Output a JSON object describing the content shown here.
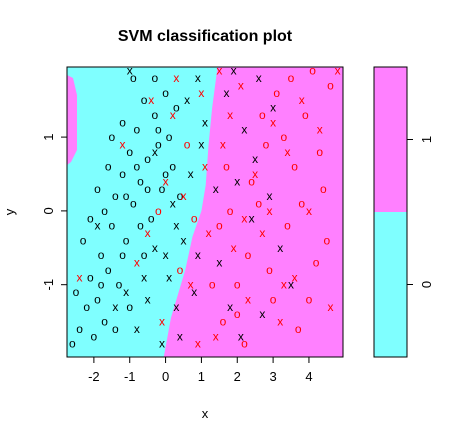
{
  "chart_data": {
    "type": "scatter",
    "title": "SVM classification plot",
    "xlabel": "x",
    "ylabel": "y",
    "xlim": [
      -2.75,
      4.95
    ],
    "ylim": [
      -1.98,
      1.95
    ],
    "x_ticks": [
      -2,
      -1,
      0,
      1,
      2,
      3,
      4
    ],
    "y_ticks": [
      -1,
      0,
      1
    ],
    "grid": false,
    "colors": {
      "class_0_region": "#7FFFFF",
      "class_1_region": "#FF80FF",
      "class_0_points": "#000000",
      "class_1_points": "#FF0000"
    },
    "decision_boundary": [
      [
        1.45,
        1.95
      ],
      [
        1.3,
        1.4
      ],
      [
        1.2,
        0.9
      ],
      [
        1.12,
        0.35
      ],
      [
        1.0,
        0.0
      ],
      [
        0.75,
        -0.35
      ],
      [
        0.55,
        -0.8
      ],
      [
        0.15,
        -1.45
      ],
      [
        -0.05,
        -1.98
      ]
    ],
    "legend": {
      "placement": "right",
      "entries": [
        {
          "label": "1",
          "color": "#FF80FF"
        },
        {
          "label": "0",
          "color": "#7FFFFF"
        }
      ]
    },
    "series": [
      {
        "name": "",
        "marker": "o",
        "color": "#000000",
        "points": [
          [
            -2.4,
            -1.6
          ],
          [
            -2.2,
            -1.3
          ],
          [
            -2.0,
            -1.7
          ],
          [
            -1.9,
            -1.2
          ],
          [
            -2.1,
            -0.9
          ],
          [
            -1.8,
            -0.6
          ],
          [
            -1.7,
            -1.5
          ],
          [
            -2.3,
            -0.4
          ],
          [
            -1.6,
            -0.8
          ],
          [
            -1.5,
            -0.2
          ],
          [
            -1.4,
            0.2
          ],
          [
            -1.3,
            -1.0
          ],
          [
            -1.2,
            0.5
          ],
          [
            -1.1,
            -0.4
          ],
          [
            -1.0,
            0.8
          ],
          [
            -0.9,
            0.1
          ],
          [
            -0.8,
            1.1
          ],
          [
            -0.7,
            0.4
          ],
          [
            -0.6,
            1.5
          ],
          [
            -0.5,
            0.7
          ],
          [
            -0.4,
            -0.1
          ],
          [
            -0.3,
            1.3
          ],
          [
            -0.2,
            0.9
          ],
          [
            -0.1,
            0.3
          ],
          [
            0.0,
            1.6
          ],
          [
            0.1,
            1.0
          ],
          [
            0.2,
            0.6
          ],
          [
            -1.6,
            0.6
          ],
          [
            -1.9,
            0.3
          ],
          [
            -2.1,
            -0.1
          ],
          [
            -0.9,
            1.8
          ],
          [
            -1.2,
            1.2
          ],
          [
            -0.3,
            1.8
          ],
          [
            0.3,
            1.4
          ],
          [
            -0.6,
            -0.6
          ],
          [
            -1.0,
            -1.3
          ],
          [
            -1.4,
            -1.6
          ],
          [
            -0.8,
            0.6
          ],
          [
            0.4,
            0.2
          ],
          [
            -1.7,
            0.0
          ],
          [
            -2.5,
            -1.1
          ],
          [
            -2.6,
            -1.8
          ],
          [
            -1.2,
            -0.6
          ],
          [
            -0.5,
            0.3
          ],
          [
            0.0,
            0.5
          ],
          [
            -1.5,
            1.0
          ],
          [
            -0.2,
            1.1
          ],
          [
            -0.7,
            -0.2
          ],
          [
            -1.1,
            0.2
          ],
          [
            -1.8,
            -1.0
          ]
        ]
      },
      {
        "name": "",
        "marker": "x",
        "color": "#000000",
        "points": [
          [
            -1.9,
            -0.2
          ],
          [
            -1.1,
            -1.1
          ],
          [
            -0.8,
            -1.6
          ],
          [
            -0.5,
            -1.2
          ],
          [
            -0.3,
            -0.5
          ],
          [
            0.1,
            -0.9
          ],
          [
            0.3,
            -1.3
          ],
          [
            0.5,
            -0.4
          ],
          [
            0.7,
            0.5
          ],
          [
            0.9,
            -0.6
          ],
          [
            1.1,
            1.2
          ],
          [
            0.6,
            1.5
          ],
          [
            0.9,
            1.8
          ],
          [
            -1.0,
            1.9
          ],
          [
            -0.1,
            -1.8
          ],
          [
            0.4,
            -1.7
          ],
          [
            0.2,
            0.1
          ],
          [
            -0.6,
            -0.9
          ],
          [
            -1.4,
            -1.3
          ],
          [
            0.8,
            -1.1
          ],
          [
            1.5,
            -0.7
          ],
          [
            2.2,
            1.1
          ],
          [
            2.6,
            1.8
          ],
          [
            3.0,
            1.4
          ],
          [
            2.0,
            0.4
          ],
          [
            2.4,
            -0.1
          ],
          [
            1.8,
            -1.3
          ],
          [
            3.2,
            -0.5
          ],
          [
            2.9,
            0.2
          ],
          [
            1.7,
            1.6
          ],
          [
            2.1,
            -1.7
          ],
          [
            3.5,
            -1.0
          ],
          [
            2.7,
            -1.4
          ],
          [
            1.4,
            0.3
          ],
          [
            0.3,
            -0.2
          ],
          [
            -0.3,
            0.8
          ],
          [
            1.0,
            0.9
          ],
          [
            1.9,
            1.9
          ],
          [
            2.5,
            0.7
          ],
          [
            0.0,
            -0.6
          ]
        ]
      },
      {
        "name": "",
        "marker": "o",
        "color": "#FF0000",
        "points": [
          [
            1.6,
            -1.5
          ],
          [
            2.0,
            -1.0
          ],
          [
            2.3,
            -0.6
          ],
          [
            2.6,
            0.1
          ],
          [
            2.8,
            0.9
          ],
          [
            3.1,
            1.6
          ],
          [
            3.4,
            -0.2
          ],
          [
            3.6,
            0.6
          ],
          [
            3.9,
            1.3
          ],
          [
            4.2,
            -0.7
          ],
          [
            4.4,
            0.3
          ],
          [
            4.6,
            1.7
          ],
          [
            3.0,
            -1.2
          ],
          [
            2.2,
            -1.8
          ],
          [
            3.7,
            -1.6
          ],
          [
            4.1,
            1.9
          ],
          [
            2.4,
            0.4
          ],
          [
            1.8,
            0.0
          ],
          [
            3.3,
            1.0
          ],
          [
            4.0,
            -1.2
          ],
          [
            1.5,
            -0.2
          ],
          [
            2.9,
            -0.8
          ],
          [
            3.8,
            0.1
          ],
          [
            4.5,
            -0.4
          ],
          [
            1.3,
            -1.0
          ],
          [
            2.7,
            1.3
          ],
          [
            3.5,
            1.8
          ],
          [
            4.3,
            0.8
          ],
          [
            2.0,
            -1.4
          ],
          [
            1.7,
            0.6
          ],
          [
            0.4,
            -0.8
          ],
          [
            0.8,
            -0.1
          ],
          [
            -0.2,
            0.0
          ],
          [
            0.6,
            0.9
          ]
        ]
      },
      {
        "name": "",
        "marker": "x",
        "color": "#FF0000",
        "points": [
          [
            -2.4,
            -0.9
          ],
          [
            -1.2,
            0.9
          ],
          [
            -0.5,
            -0.3
          ],
          [
            -0.1,
            -1.5
          ],
          [
            0.2,
            1.3
          ],
          [
            0.5,
            0.2
          ],
          [
            0.7,
            -1.0
          ],
          [
            1.0,
            1.6
          ],
          [
            1.2,
            -0.3
          ],
          [
            1.4,
            -1.7
          ],
          [
            1.6,
            0.9
          ],
          [
            1.9,
            -0.5
          ],
          [
            2.1,
            1.7
          ],
          [
            2.3,
            -1.2
          ],
          [
            2.5,
            0.5
          ],
          [
            2.7,
            -0.3
          ],
          [
            3.0,
            1.2
          ],
          [
            3.2,
            -1.5
          ],
          [
            3.4,
            0.8
          ],
          [
            3.6,
            -0.9
          ],
          [
            3.8,
            1.5
          ],
          [
            4.0,
            0.0
          ],
          [
            4.3,
            1.1
          ],
          [
            4.6,
            -1.3
          ],
          [
            4.8,
            1.9
          ],
          [
            0.0,
            0.4
          ],
          [
            -0.8,
            -0.7
          ],
          [
            0.9,
            -1.8
          ],
          [
            1.8,
            1.3
          ],
          [
            2.2,
            -0.1
          ],
          [
            2.9,
            0.0
          ],
          [
            3.3,
            -1.0
          ],
          [
            1.1,
            0.6
          ],
          [
            0.3,
            1.8
          ],
          [
            -0.4,
            1.5
          ],
          [
            1.5,
            1.9
          ]
        ]
      }
    ]
  }
}
